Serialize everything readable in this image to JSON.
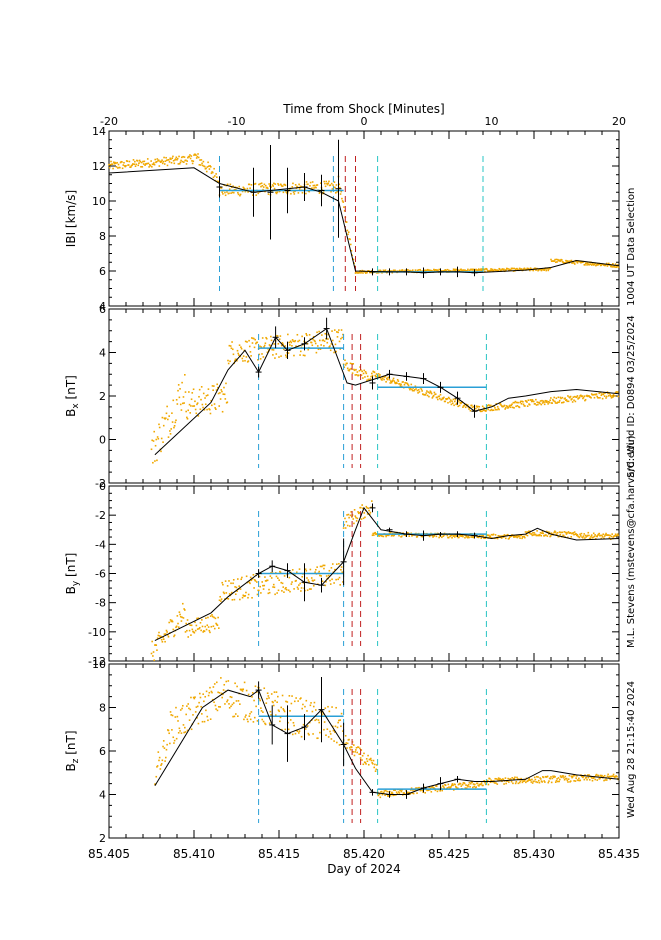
{
  "top_axis": {
    "label": "Time from Shock [Minutes]",
    "ticks": [
      "-20",
      "-10",
      "0",
      "10",
      "20"
    ]
  },
  "bottom_axis": {
    "label": "Day of 2024",
    "ticks": [
      "85.405",
      "85.410",
      "85.415",
      "85.420",
      "85.425",
      "85.430",
      "85.435"
    ]
  },
  "side_text": {
    "selection": "1004 UT Data Selection",
    "spacecraft": "S/C: Wind ID: D0894 03/25/2024",
    "author": "M.L. Stevens (mstevens@cfa.harvard.edu)",
    "timestamp": "Wed Aug 28 21:15:40 2024"
  },
  "colors": {
    "raw_data": "#f0a800",
    "fit_line": "#000000",
    "interval_line_blue": "#2a9fd6",
    "interval_line_cyan": "#2ac4c4",
    "shock_line_red": "#c02020",
    "mean_bar": "#2a9fd6"
  },
  "chart_data": [
    {
      "type": "line",
      "panel": "V",
      "ylabel_main": "|B| [km/s]",
      "ylabel": "IBI [km/s]",
      "xlim": [
        85.405,
        85.435
      ],
      "ylim": [
        4,
        14
      ],
      "yticks": [
        "4",
        "6",
        "8",
        "10",
        "12",
        "14"
      ],
      "series": [
        {
          "x": [
            85.405,
            85.41,
            85.4115,
            85.4135,
            85.4145,
            85.4155,
            85.4165,
            85.4175,
            85.4185,
            85.4195,
            85.4215,
            85.4225,
            85.4235,
            85.4245,
            85.4255,
            85.4265,
            85.4275,
            85.4295,
            85.431,
            85.4325,
            85.435
          ],
          "y": [
            11.6,
            11.9,
            11.0,
            10.5,
            10.6,
            10.7,
            10.8,
            10.5,
            10.0,
            6.0,
            5.95,
            5.95,
            5.9,
            5.95,
            5.95,
            5.9,
            5.95,
            6.05,
            6.2,
            6.6,
            6.3
          ]
        }
      ],
      "error_bars": {
        "x": [
          85.4115,
          85.4135,
          85.4145,
          85.4155,
          85.4165,
          85.4175,
          85.4185,
          85.4205,
          85.4215,
          85.4225,
          85.4235,
          85.4245,
          85.4255,
          85.4265
        ],
        "y": [
          10.8,
          10.5,
          10.5,
          10.6,
          10.8,
          10.6,
          10.7,
          5.95,
          5.95,
          5.95,
          5.9,
          5.95,
          5.95,
          5.9
        ],
        "err": [
          0.6,
          1.4,
          2.7,
          1.3,
          0.8,
          0.9,
          2.8,
          0.2,
          0.2,
          0.2,
          0.3,
          0.2,
          0.3,
          0.2
        ]
      },
      "mean_bars": [
        {
          "x": [
            85.4115,
            85.4188
          ],
          "y": 10.6
        },
        {
          "x": [
            85.4205,
            85.427
          ],
          "y": 5.95
        }
      ],
      "vlines": {
        "blue": [
          85.4115,
          85.4182
        ],
        "cyan": [
          85.4208,
          85.427
        ],
        "red": [
          85.4189,
          85.4195
        ]
      },
      "raw_scatter": {
        "segments": [
          {
            "x_start": 85.405,
            "x_end": 85.41,
            "y_start": 12.0,
            "y_end": 12.4,
            "noise": 0.25
          },
          {
            "x_start": 85.41,
            "x_end": 85.4115,
            "y_start": 12.6,
            "y_end": 11.3,
            "noise": 0.35
          },
          {
            "x_start": 85.4115,
            "x_end": 85.4185,
            "y_start": 10.6,
            "y_end": 10.8,
            "noise": 0.35
          },
          {
            "x_start": 85.4185,
            "x_end": 85.4195,
            "y_start": 11.2,
            "y_end": 6.0,
            "noise": 0.2
          },
          {
            "x_start": 85.4195,
            "x_end": 85.431,
            "y_start": 5.95,
            "y_end": 6.1,
            "noise": 0.08
          },
          {
            "x_start": 85.431,
            "x_end": 85.435,
            "y_start": 6.6,
            "y_end": 6.3,
            "noise": 0.1
          }
        ]
      }
    },
    {
      "type": "line",
      "panel": "Bx",
      "ylabel": "Bx [nT]",
      "ylabel_sub": "x",
      "xlim": [
        85.405,
        85.435
      ],
      "ylim": [
        -2,
        6
      ],
      "yticks": [
        "-2",
        "0",
        "2",
        "4",
        "6"
      ],
      "series": [
        {
          "x": [
            85.4077,
            85.411,
            85.412,
            85.413,
            85.4138,
            85.4148,
            85.4155,
            85.4165,
            85.4178,
            85.419,
            85.4195,
            85.4215,
            85.4225,
            85.4235,
            85.4245,
            85.4255,
            85.4265,
            85.4275,
            85.4285,
            85.4295,
            85.431,
            85.4325,
            85.435
          ],
          "y": [
            -0.7,
            1.7,
            3.2,
            4.1,
            3.1,
            4.7,
            4.1,
            4.4,
            5.1,
            2.6,
            2.5,
            3.0,
            2.9,
            2.8,
            2.4,
            1.9,
            1.3,
            1.5,
            1.9,
            2.0,
            2.2,
            2.3,
            2.1
          ]
        }
      ],
      "error_bars": {
        "x": [
          85.4138,
          85.4148,
          85.4155,
          85.4165,
          85.4178,
          85.4205,
          85.4215,
          85.4225,
          85.4235,
          85.4245,
          85.4255,
          85.4265
        ],
        "y": [
          3.1,
          4.7,
          4.1,
          4.4,
          5.1,
          2.6,
          3.0,
          2.9,
          2.8,
          2.4,
          1.9,
          1.3
        ],
        "err": [
          0.25,
          0.5,
          0.4,
          0.3,
          0.5,
          0.3,
          0.2,
          0.2,
          0.25,
          0.25,
          0.3,
          0.3
        ]
      },
      "mean_bars": [
        {
          "x": [
            85.4138,
            85.4188
          ],
          "y": 4.2
        },
        {
          "x": [
            85.4208,
            85.4272
          ],
          "y": 2.4
        }
      ],
      "vlines": {
        "blue": [
          85.4138,
          85.4188
        ],
        "cyan": [
          85.4208,
          85.4272
        ],
        "red": [
          85.4193,
          85.4198
        ]
      },
      "raw_scatter": {
        "segments": [
          {
            "x_start": 85.4075,
            "x_end": 85.4095,
            "y_start": -0.6,
            "y_end": 2.5,
            "noise": 0.9
          },
          {
            "x_start": 85.4095,
            "x_end": 85.412,
            "y_start": 1.6,
            "y_end": 2.0,
            "noise": 0.7
          },
          {
            "x_start": 85.412,
            "x_end": 85.4188,
            "y_start": 4.0,
            "y_end": 4.6,
            "noise": 0.55
          },
          {
            "x_start": 85.4188,
            "x_end": 85.4205,
            "y_start": 3.5,
            "y_end": 2.8,
            "noise": 0.25
          },
          {
            "x_start": 85.4205,
            "x_end": 85.4265,
            "y_start": 3.0,
            "y_end": 1.4,
            "noise": 0.15
          },
          {
            "x_start": 85.4265,
            "x_end": 85.435,
            "y_start": 1.4,
            "y_end": 2.1,
            "noise": 0.15
          }
        ]
      }
    },
    {
      "type": "line",
      "panel": "By",
      "ylabel": "By [nT]",
      "ylabel_sub": "y",
      "xlim": [
        85.405,
        85.435
      ],
      "ylim": [
        -12,
        0
      ],
      "yticks": [
        "-12",
        "-10",
        "-8",
        "-6",
        "-4",
        "-2",
        "0"
      ],
      "series": [
        {
          "x": [
            85.4077,
            85.411,
            85.412,
            85.4138,
            85.4146,
            85.4155,
            85.4165,
            85.4175,
            85.4188,
            85.4195,
            85.42,
            85.421,
            85.4225,
            85.4235,
            85.4245,
            85.4255,
            85.4265,
            85.4275,
            85.4285,
            85.4295,
            85.4302,
            85.431,
            85.4325,
            85.435
          ],
          "y": [
            -10.6,
            -8.7,
            -7.6,
            -6.0,
            -5.5,
            -5.8,
            -6.6,
            -6.8,
            -5.2,
            -3.0,
            -1.5,
            -3.0,
            -3.3,
            -3.4,
            -3.3,
            -3.3,
            -3.4,
            -3.6,
            -3.4,
            -3.3,
            -2.9,
            -3.3,
            -3.7,
            -3.6
          ]
        }
      ],
      "error_bars": {
        "x": [
          85.4138,
          85.4146,
          85.4155,
          85.4165,
          85.4175,
          85.4188,
          85.4205,
          85.4215,
          85.4225,
          85.4235,
          85.4245,
          85.4255,
          85.4265
        ],
        "y": [
          -6.0,
          -5.5,
          -5.8,
          -6.6,
          -6.8,
          -5.2,
          -1.5,
          -3.0,
          -3.3,
          -3.4,
          -3.3,
          -3.3,
          -3.4
        ],
        "err": [
          0.3,
          0.4,
          0.5,
          1.3,
          0.5,
          1.6,
          0.3,
          0.15,
          0.2,
          0.35,
          0.15,
          0.2,
          0.2
        ]
      },
      "mean_bars": [
        {
          "x": [
            85.4138,
            85.4188
          ],
          "y": -6.0
        },
        {
          "x": [
            85.4208,
            85.4272
          ],
          "y": -3.3
        }
      ],
      "vlines": {
        "blue": [
          85.4138,
          85.4188
        ],
        "cyan": [
          85.4208,
          85.4272
        ],
        "red": [
          85.4193,
          85.4198
        ]
      },
      "raw_scatter": {
        "segments": [
          {
            "x_start": 85.4075,
            "x_end": 85.4095,
            "y_start": -11.5,
            "y_end": -8.5,
            "noise": 0.8
          },
          {
            "x_start": 85.4095,
            "x_end": 85.4115,
            "y_start": -9.8,
            "y_end": -9.3,
            "noise": 0.6
          },
          {
            "x_start": 85.4115,
            "x_end": 85.4188,
            "y_start": -7.2,
            "y_end": -6.0,
            "noise": 0.8
          },
          {
            "x_start": 85.4188,
            "x_end": 85.4205,
            "y_start": -2.5,
            "y_end": -1.4,
            "noise": 0.5
          },
          {
            "x_start": 85.4205,
            "x_end": 85.4295,
            "y_start": -3.3,
            "y_end": -3.5,
            "noise": 0.15
          },
          {
            "x_start": 85.4295,
            "x_end": 85.435,
            "y_start": -3.2,
            "y_end": -3.5,
            "noise": 0.2
          }
        ]
      }
    },
    {
      "type": "line",
      "panel": "Bz",
      "ylabel": "Bz [nT]",
      "ylabel_sub": "z",
      "xlim": [
        85.405,
        85.435
      ],
      "ylim": [
        2,
        10
      ],
      "yticks": [
        "2",
        "4",
        "6",
        "8",
        "10"
      ],
      "series": [
        {
          "x": [
            85.4077,
            85.4105,
            85.412,
            85.4133,
            85.4138,
            85.4146,
            85.4155,
            85.4165,
            85.4175,
            85.4188,
            85.4195,
            85.4205,
            85.4215,
            85.4225,
            85.4235,
            85.4245,
            85.4255,
            85.4265,
            85.4275,
            85.4295,
            85.4305,
            85.431,
            85.4325,
            85.435
          ],
          "y": [
            4.4,
            8.0,
            8.8,
            8.5,
            8.8,
            7.2,
            6.8,
            7.1,
            7.9,
            6.3,
            5.2,
            4.1,
            4.0,
            4.0,
            4.3,
            4.5,
            4.7,
            4.6,
            4.6,
            4.7,
            5.1,
            5.1,
            4.9,
            4.7
          ]
        }
      ],
      "error_bars": {
        "x": [
          85.4138,
          85.4146,
          85.4155,
          85.4165,
          85.4175,
          85.4188,
          85.4205,
          85.4215,
          85.4225,
          85.4235,
          85.4245,
          85.4255
        ],
        "y": [
          8.8,
          7.2,
          6.8,
          7.1,
          7.9,
          6.3,
          4.1,
          4.0,
          4.0,
          4.3,
          4.5,
          4.7
        ],
        "err": [
          0.4,
          0.9,
          1.3,
          0.6,
          1.5,
          1.0,
          0.15,
          0.15,
          0.2,
          0.2,
          0.3,
          0.15
        ]
      },
      "mean_bars": [
        {
          "x": [
            85.4138,
            85.4188
          ],
          "y": 7.6
        },
        {
          "x": [
            85.4208,
            85.4272
          ],
          "y": 4.25
        }
      ],
      "vlines": {
        "blue": [
          85.4138,
          85.4188
        ],
        "cyan": [
          85.4208,
          85.4272
        ],
        "red": [
          85.4193,
          85.4198
        ]
      },
      "raw_scatter": {
        "segments": [
          {
            "x_start": 85.4077,
            "x_end": 85.4085,
            "y_start": 5.0,
            "y_end": 6.5,
            "noise": 0.6
          },
          {
            "x_start": 85.4085,
            "x_end": 85.4115,
            "y_start": 7.0,
            "y_end": 8.5,
            "noise": 0.8
          },
          {
            "x_start": 85.4115,
            "x_end": 85.4188,
            "y_start": 8.6,
            "y_end": 7.0,
            "noise": 0.9
          },
          {
            "x_start": 85.4188,
            "x_end": 85.4208,
            "y_start": 6.5,
            "y_end": 5.1,
            "noise": 0.3
          },
          {
            "x_start": 85.4208,
            "x_end": 85.4272,
            "y_start": 4.0,
            "y_end": 4.5,
            "noise": 0.15
          },
          {
            "x_start": 85.4272,
            "x_end": 85.435,
            "y_start": 4.6,
            "y_end": 4.8,
            "noise": 0.15
          }
        ]
      }
    }
  ]
}
